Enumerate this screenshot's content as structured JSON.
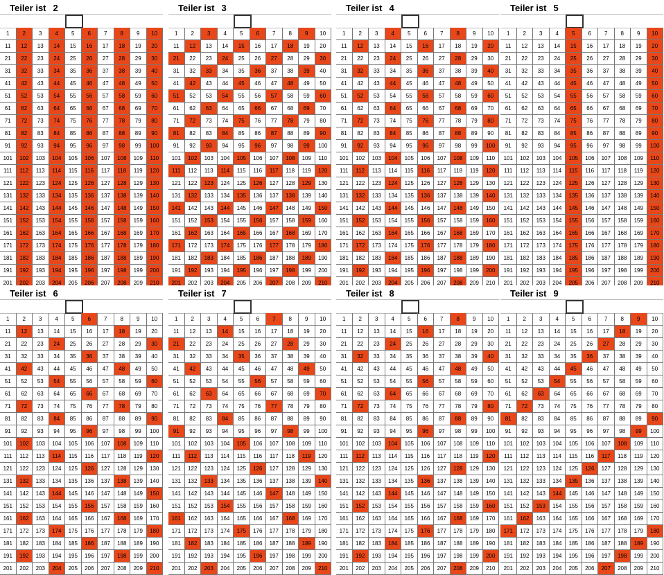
{
  "panels": [
    {
      "title": "Teiler ist",
      "divisor": 2
    },
    {
      "title": "Teiler ist",
      "divisor": 3
    },
    {
      "title": "Teiler ist",
      "divisor": 4
    },
    {
      "title": "Teiler ist",
      "divisor": 5
    },
    {
      "title": "Teiler ist",
      "divisor": 6
    },
    {
      "title": "Teiler ist",
      "divisor": 7
    },
    {
      "title": "Teiler ist",
      "divisor": 8
    },
    {
      "title": "Teiler ist",
      "divisor": 9
    }
  ],
  "grid": [
    [
      1,
      2,
      3,
      4,
      5,
      6,
      7,
      8,
      9,
      10
    ],
    [
      11,
      12,
      13,
      14,
      15,
      16,
      17,
      18,
      19,
      20
    ],
    [
      21,
      22,
      23,
      24,
      25,
      26,
      27,
      28,
      29,
      30
    ],
    [
      31,
      32,
      33,
      34,
      35,
      36,
      37,
      38,
      39,
      40
    ],
    [
      41,
      42,
      43,
      44,
      45,
      46,
      47,
      48,
      49,
      50
    ],
    [
      51,
      52,
      53,
      54,
      55,
      56,
      57,
      58,
      59,
      60
    ],
    [
      61,
      62,
      63,
      64,
      65,
      66,
      67,
      68,
      69,
      70
    ],
    [
      71,
      72,
      73,
      74,
      75,
      76,
      77,
      78,
      79,
      80
    ],
    [
      81,
      82,
      83,
      84,
      85,
      86,
      87,
      88,
      89,
      90
    ],
    [
      91,
      92,
      93,
      94,
      95,
      96,
      97,
      98,
      99,
      100
    ],
    [
      101,
      102,
      103,
      104,
      105,
      106,
      107,
      108,
      109,
      110
    ],
    [
      111,
      112,
      113,
      114,
      115,
      116,
      117,
      118,
      119,
      120
    ],
    [
      121,
      122,
      123,
      124,
      125,
      126,
      127,
      128,
      129,
      130
    ],
    [
      131,
      132,
      133,
      134,
      135,
      136,
      137,
      138,
      139,
      140
    ],
    [
      141,
      142,
      143,
      144,
      145,
      146,
      147,
      148,
      149,
      150
    ],
    [
      151,
      152,
      153,
      154,
      155,
      156,
      157,
      158,
      159,
      160
    ],
    [
      161,
      162,
      163,
      164,
      165,
      166,
      167,
      168,
      169,
      170
    ],
    [
      171,
      172,
      173,
      174,
      175,
      176,
      177,
      178,
      179,
      180
    ],
    [
      181,
      182,
      183,
      184,
      185,
      186,
      187,
      188,
      189,
      190
    ],
    [
      191,
      192,
      193,
      194,
      195,
      196,
      197,
      198,
      199,
      200
    ],
    [
      201,
      202,
      203,
      204,
      205,
      206,
      207,
      208,
      209,
      210
    ]
  ]
}
